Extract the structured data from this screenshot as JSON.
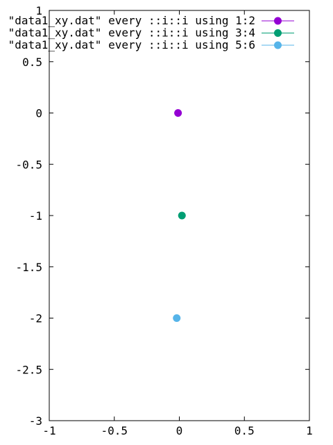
{
  "chart_data": {
    "type": "scatter",
    "title": "",
    "xlabel": "",
    "ylabel": "",
    "xlim": [
      -1,
      1
    ],
    "ylim": [
      -3,
      1
    ],
    "grid": false,
    "legend_position": "top-right",
    "x_ticks": [
      {
        "value": -1,
        "label": "-1"
      },
      {
        "value": -0.5,
        "label": "-0.5"
      },
      {
        "value": 0,
        "label": "0"
      },
      {
        "value": 0.5,
        "label": "0.5"
      },
      {
        "value": 1,
        "label": "1"
      }
    ],
    "y_ticks": [
      {
        "value": 1,
        "label": "1"
      },
      {
        "value": 0.5,
        "label": "0.5"
      },
      {
        "value": 0,
        "label": "0"
      },
      {
        "value": -0.5,
        "label": "-0.5"
      },
      {
        "value": -1,
        "label": "-1"
      },
      {
        "value": -1.5,
        "label": "-1.5"
      },
      {
        "value": -2,
        "label": "-2"
      },
      {
        "value": -2.5,
        "label": "-2.5"
      },
      {
        "value": -3,
        "label": "-3"
      }
    ],
    "series": [
      {
        "name": "\"data1_xy.dat\" every ::i::i using 1:2",
        "color": "#9400d3",
        "points": [
          {
            "x": -0.01,
            "y": 0
          }
        ]
      },
      {
        "name": "\"data1_xy.dat\" every ::i::i using 3:4",
        "color": "#009e73",
        "points": [
          {
            "x": 0.02,
            "y": -1
          }
        ]
      },
      {
        "name": "\"data1_xy.dat\" every ::i::i using 5:6",
        "color": "#56b4e9",
        "points": [
          {
            "x": -0.02,
            "y": -2
          }
        ]
      }
    ]
  }
}
